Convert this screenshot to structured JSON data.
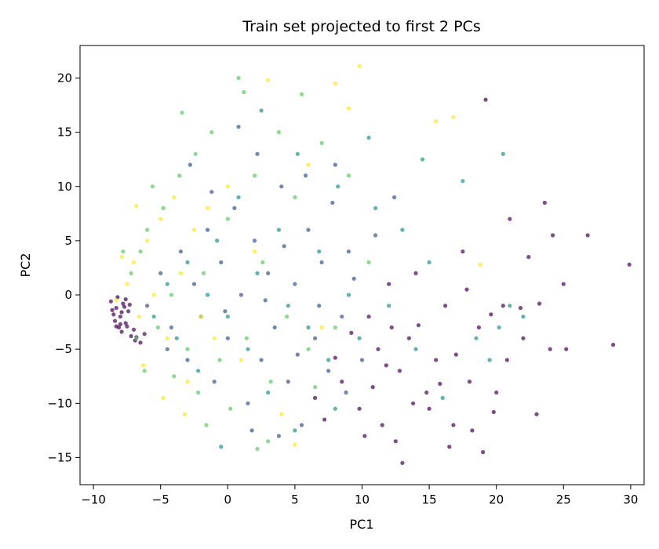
{
  "chart_data": {
    "type": "scatter",
    "title": "Train set projected to first 2 PCs",
    "xlabel": "PC1",
    "ylabel": "PC2",
    "xlim": [
      -11,
      31
    ],
    "ylim": [
      -17.5,
      23
    ],
    "xticks": [
      -10,
      -5,
      0,
      5,
      10,
      15,
      20,
      25,
      30
    ],
    "yticks": [
      -15,
      -10,
      -5,
      0,
      5,
      10,
      15,
      20
    ],
    "grid": false,
    "legend": "none",
    "colormap": "viridis",
    "point_alpha": 0.7,
    "colors": {
      "purple": "#440154",
      "blue": "#3b528b",
      "teal": "#21918c",
      "green": "#5ec962",
      "yellow": "#fde725"
    },
    "series": [
      {
        "color": "#440154",
        "points": [
          [
            -8.3,
            -1.2
          ],
          [
            -8.0,
            -2.0
          ],
          [
            -7.8,
            -0.8
          ],
          [
            -8.5,
            -1.8
          ],
          [
            -7.6,
            -2.6
          ],
          [
            -8.1,
            -3.0
          ],
          [
            -7.4,
            -1.5
          ],
          [
            -8.7,
            -0.6
          ],
          [
            -7.9,
            -3.4
          ],
          [
            -8.4,
            -2.4
          ],
          [
            -7.2,
            -3.8
          ],
          [
            -8.2,
            -0.2
          ],
          [
            -7.7,
            -1.1
          ],
          [
            -6.9,
            -4.2
          ],
          [
            -7.5,
            -2.9
          ],
          [
            -8.6,
            -1.4
          ],
          [
            -7.3,
            -0.9
          ],
          [
            -6.5,
            -4.4
          ],
          [
            -7.0,
            -3.2
          ],
          [
            -8.0,
            -2.7
          ],
          [
            -6.8,
            -3.9
          ],
          [
            -7.9,
            -1.6
          ],
          [
            -6.2,
            -3.6
          ],
          [
            -7.6,
            -0.4
          ],
          [
            -8.3,
            -2.9
          ],
          [
            10.5,
            -2.0
          ],
          [
            11.2,
            -5.0
          ],
          [
            12.0,
            1.0
          ],
          [
            12.8,
            -7.0
          ],
          [
            13.5,
            -4.0
          ],
          [
            14.0,
            2.0
          ],
          [
            14.8,
            -9.0
          ],
          [
            15.5,
            -6.0
          ],
          [
            16.2,
            -1.0
          ],
          [
            16.8,
            -12.0
          ],
          [
            17.5,
            4.0
          ],
          [
            18.0,
            -8.0
          ],
          [
            18.7,
            -3.0
          ],
          [
            19.2,
            18.0
          ],
          [
            19.0,
            -14.5
          ],
          [
            20.0,
            -9.0
          ],
          [
            20.5,
            -1.0
          ],
          [
            21.0,
            7.0
          ],
          [
            22.0,
            -4.0
          ],
          [
            22.4,
            3.5
          ],
          [
            23.0,
            -11.0
          ],
          [
            23.6,
            8.5
          ],
          [
            24.0,
            -5.0
          ],
          [
            24.2,
            5.5
          ],
          [
            25.0,
            1.0
          ],
          [
            25.2,
            -5.0
          ],
          [
            26.8,
            5.5
          ],
          [
            28.7,
            -4.6
          ],
          [
            29.9,
            2.8
          ],
          [
            13.0,
            -15.5
          ],
          [
            16.5,
            -14.0
          ],
          [
            11.5,
            -12.0
          ],
          [
            9.8,
            -10.5
          ],
          [
            8.5,
            -8.0
          ],
          [
            7.2,
            -11.5
          ],
          [
            12.5,
            -13.5
          ],
          [
            15.0,
            -10.5
          ],
          [
            18.2,
            -12.5
          ],
          [
            20.8,
            -6.0
          ],
          [
            19.6,
            -1.8
          ],
          [
            9.2,
            -3.5
          ],
          [
            10.8,
            -8.5
          ],
          [
            13.8,
            -10.0
          ],
          [
            17.0,
            -5.5
          ],
          [
            21.8,
            -1.2
          ],
          [
            14.2,
            -2.8
          ],
          [
            11.8,
            -6.5
          ],
          [
            8.0,
            -5.8
          ],
          [
            6.5,
            -9.5
          ],
          [
            10.2,
            -13.0
          ],
          [
            17.8,
            0.5
          ],
          [
            23.2,
            -0.8
          ],
          [
            15.8,
            -8.2
          ],
          [
            12.2,
            -3.0
          ],
          [
            19.8,
            -10.8
          ]
        ]
      },
      {
        "color": "#3b528b",
        "points": [
          [
            -6.0,
            -1.0
          ],
          [
            -5.0,
            2.0
          ],
          [
            -4.2,
            -3.0
          ],
          [
            -3.5,
            4.0
          ],
          [
            -3.0,
            -6.0
          ],
          [
            -2.5,
            1.0
          ],
          [
            -2.0,
            -2.0
          ],
          [
            -1.5,
            6.0
          ],
          [
            -1.0,
            -8.0
          ],
          [
            -0.5,
            3.0
          ],
          [
            0.0,
            -4.0
          ],
          [
            0.5,
            8.0
          ],
          [
            1.0,
            0.0
          ],
          [
            1.5,
            -10.0
          ],
          [
            2.0,
            5.0
          ],
          [
            2.5,
            -6.0
          ],
          [
            3.0,
            2.0
          ],
          [
            3.5,
            -3.0
          ],
          [
            4.0,
            10.0
          ],
          [
            4.5,
            -8.0
          ],
          [
            5.0,
            1.0
          ],
          [
            5.5,
            -12.0
          ],
          [
            6.0,
            6.0
          ],
          [
            6.5,
            -4.0
          ],
          [
            7.0,
            3.0
          ],
          [
            7.5,
            -7.0
          ],
          [
            8.0,
            12.0
          ],
          [
            8.5,
            -2.0
          ],
          [
            9.0,
            4.0
          ],
          [
            10.0,
            -6.0
          ],
          [
            2.2,
            13.0
          ],
          [
            0.8,
            15.5
          ],
          [
            -1.2,
            9.5
          ],
          [
            3.8,
            -13.0
          ],
          [
            5.8,
            11.0
          ],
          [
            -4.5,
            -5.0
          ],
          [
            6.8,
            -1.0
          ],
          [
            9.4,
            1.5
          ],
          [
            11.0,
            5.5
          ],
          [
            12.4,
            9.0
          ],
          [
            -2.8,
            12.0
          ],
          [
            1.8,
            -12.5
          ],
          [
            4.2,
            4.5
          ],
          [
            7.8,
            8.5
          ],
          [
            -0.2,
            -1.5
          ],
          [
            2.8,
            -0.5
          ],
          [
            5.2,
            -5.5
          ],
          [
            8.8,
            -9.0
          ]
        ]
      },
      {
        "color": "#21918c",
        "points": [
          [
            -5.5,
            -2.0
          ],
          [
            -4.5,
            1.0
          ],
          [
            -3.8,
            -4.0
          ],
          [
            -3.0,
            3.0
          ],
          [
            -2.2,
            -7.0
          ],
          [
            -1.5,
            0.0
          ],
          [
            -0.8,
            5.0
          ],
          [
            0.0,
            -2.0
          ],
          [
            0.8,
            9.0
          ],
          [
            1.5,
            -5.0
          ],
          [
            2.2,
            2.0
          ],
          [
            3.0,
            -9.0
          ],
          [
            3.8,
            6.0
          ],
          [
            4.5,
            -1.0
          ],
          [
            5.2,
            13.0
          ],
          [
            6.0,
            -3.0
          ],
          [
            6.8,
            4.0
          ],
          [
            7.5,
            -6.0
          ],
          [
            8.2,
            10.0
          ],
          [
            9.0,
            0.0
          ],
          [
            9.8,
            -4.0
          ],
          [
            11.0,
            8.0
          ],
          [
            12.0,
            -1.0
          ],
          [
            13.0,
            6.0
          ],
          [
            14.0,
            -5.0
          ],
          [
            15.0,
            3.0
          ],
          [
            17.5,
            10.5
          ],
          [
            18.5,
            -4.0
          ],
          [
            20.5,
            13.0
          ],
          [
            20.2,
            -3.0
          ],
          [
            21.0,
            -1.0
          ],
          [
            19.5,
            -6.0
          ],
          [
            22.0,
            -2.0
          ],
          [
            14.5,
            12.5
          ],
          [
            2.5,
            17.0
          ],
          [
            -0.5,
            -14.0
          ],
          [
            5.0,
            -12.5
          ],
          [
            16.0,
            -9.5
          ],
          [
            10.5,
            14.5
          ],
          [
            8.0,
            -10.5
          ]
        ]
      },
      {
        "color": "#5ec962",
        "points": [
          [
            -7.2,
            2.0
          ],
          [
            -6.5,
            4.0
          ],
          [
            -6.0,
            6.0
          ],
          [
            -5.2,
            -3.0
          ],
          [
            -4.8,
            8.0
          ],
          [
            -4.2,
            0.0
          ],
          [
            -3.6,
            11.0
          ],
          [
            -3.0,
            -5.0
          ],
          [
            -2.4,
            13.0
          ],
          [
            -1.8,
            2.0
          ],
          [
            -1.2,
            15.0
          ],
          [
            -0.6,
            -6.0
          ],
          [
            0.0,
            7.0
          ],
          [
            0.8,
            20.0
          ],
          [
            1.4,
            -4.0
          ],
          [
            2.0,
            11.0
          ],
          [
            2.6,
            3.0
          ],
          [
            3.2,
            -8.0
          ],
          [
            3.8,
            15.0
          ],
          [
            4.4,
            -2.0
          ],
          [
            5.0,
            9.0
          ],
          [
            6.0,
            -5.0
          ],
          [
            7.0,
            14.0
          ],
          [
            8.0,
            -3.0
          ],
          [
            9.0,
            11.0
          ],
          [
            10.5,
            3.0
          ],
          [
            -7.8,
            4.0
          ],
          [
            -6.8,
            -4.0
          ],
          [
            -5.6,
            10.0
          ],
          [
            -3.4,
            16.8
          ],
          [
            1.2,
            18.7
          ],
          [
            5.5,
            18.5
          ],
          [
            -2.2,
            -9.0
          ],
          [
            0.2,
            -10.5
          ],
          [
            3.0,
            -13.5
          ],
          [
            -1.6,
            -12.0
          ],
          [
            6.5,
            -8.5
          ],
          [
            -4.0,
            -7.5
          ],
          [
            2.2,
            -14.2
          ],
          [
            -6.2,
            -7.0
          ]
        ]
      },
      {
        "color": "#fde725",
        "points": [
          [
            -7.5,
            1.0
          ],
          [
            -7.0,
            3.0
          ],
          [
            -6.6,
            -2.0
          ],
          [
            -6.0,
            5.0
          ],
          [
            -5.5,
            0.0
          ],
          [
            -5.0,
            7.0
          ],
          [
            -4.5,
            -4.0
          ],
          [
            -4.0,
            9.0
          ],
          [
            -3.5,
            2.0
          ],
          [
            -3.0,
            -8.0
          ],
          [
            -2.5,
            6.0
          ],
          [
            -2.0,
            -2.0
          ],
          [
            -1.5,
            8.0
          ],
          [
            -1.0,
            -4.0
          ],
          [
            0.0,
            10.0
          ],
          [
            1.0,
            -6.0
          ],
          [
            2.0,
            4.0
          ],
          [
            3.0,
            19.8
          ],
          [
            4.0,
            -11.0
          ],
          [
            5.0,
            -13.8
          ],
          [
            6.0,
            12.0
          ],
          [
            8.0,
            19.5
          ],
          [
            9.8,
            21.1
          ],
          [
            7.0,
            -3.0
          ],
          [
            15.5,
            16.0
          ],
          [
            16.8,
            16.4
          ],
          [
            18.8,
            2.8
          ],
          [
            -7.9,
            3.5
          ],
          [
            -6.3,
            -6.5
          ],
          [
            -4.8,
            -9.5
          ],
          [
            -8.3,
            -0.5
          ],
          [
            9.0,
            17.2
          ],
          [
            -6.8,
            8.2
          ],
          [
            -3.2,
            -11.0
          ]
        ]
      }
    ]
  }
}
